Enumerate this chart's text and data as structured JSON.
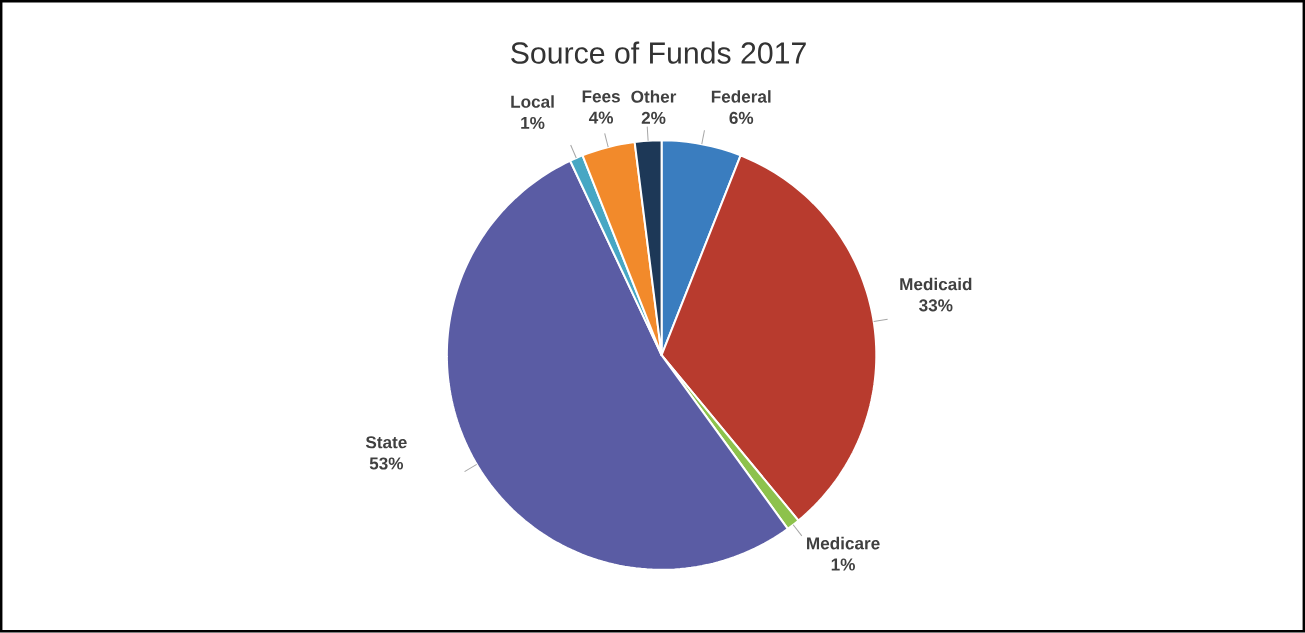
{
  "chart_data": {
    "type": "pie",
    "title": "Source of Funds 2017",
    "categories": [
      "Federal",
      "Medicaid",
      "Medicare",
      "State",
      "Local",
      "Fees",
      "Other"
    ],
    "values": [
      6,
      33,
      1,
      53,
      1,
      4,
      2
    ],
    "value_labels": [
      "6%",
      "33%",
      "1%",
      "53%",
      "1%",
      "4%",
      "2%"
    ],
    "colors": [
      "#3a7dbf",
      "#b83b2e",
      "#8dc24c",
      "#5a5ca4",
      "#47a7c4",
      "#f28a2b",
      "#1d3857"
    ]
  }
}
